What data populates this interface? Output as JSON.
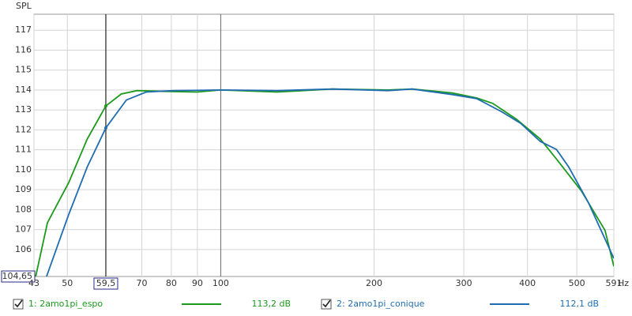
{
  "chart_data": {
    "type": "line",
    "y_label": "SPL",
    "x_unit": "Hz",
    "log_x": true,
    "grid": true,
    "xlim": [
      43,
      591
    ],
    "ylim": [
      104.65,
      117.8
    ],
    "xticks": [
      43,
      50,
      {
        "value": 59.5,
        "label": "59,5"
      },
      70,
      80,
      90,
      100,
      200,
      300,
      400,
      500,
      591
    ],
    "yticks": [
      {
        "value": 104.65,
        "label": "104,65"
      },
      106,
      107,
      108,
      109,
      110,
      111,
      112,
      113,
      114,
      115,
      116,
      117
    ],
    "cursor_x": 59.5,
    "series": [
      {
        "name": "1: 2amo1pi_espo",
        "color": "#1c9a1c",
        "x": [
          43.3,
          45.7,
          50.3,
          54.7,
          59.5,
          63.8,
          68.5,
          77.6,
          89.8,
          100,
          128.8,
          165.8,
          213,
          237.6,
          284.8,
          318,
          342,
          381,
          424,
          456,
          510,
          568,
          591
        ],
        "values": [
          104.6,
          107.35,
          109.35,
          111.54,
          113.2,
          113.8,
          113.97,
          113.93,
          113.9,
          114.0,
          113.9,
          114.05,
          114.0,
          114.05,
          113.85,
          113.6,
          113.33,
          112.53,
          111.54,
          110.54,
          108.95,
          106.96,
          105.16
        ],
        "cursor_value": 113.2,
        "cursor_value_label": "113,2 dB"
      },
      {
        "name": "2: 2amo1pi_conique",
        "color": "#1f6db0",
        "x": [
          45.4,
          50.3,
          54.7,
          59.5,
          65.3,
          71.4,
          80.7,
          100,
          128.8,
          165.8,
          213,
          237.6,
          284.8,
          318,
          355,
          388,
          424,
          456,
          482,
          527,
          591
        ],
        "values": [
          104.57,
          107.75,
          110.14,
          112.1,
          113.5,
          113.9,
          113.97,
          114.0,
          113.97,
          114.05,
          113.97,
          114.05,
          113.77,
          113.57,
          112.93,
          112.33,
          111.42,
          111.02,
          110.14,
          108.35,
          105.56
        ],
        "cursor_value": 112.1,
        "cursor_value_label": "112,1 dB"
      }
    ]
  }
}
